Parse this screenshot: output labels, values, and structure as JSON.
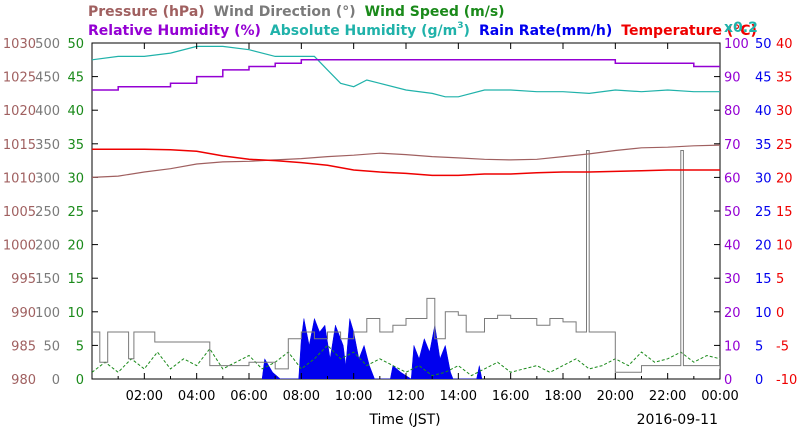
{
  "chart_data": {
    "type": "line",
    "date_label": "2016-09-11",
    "xlabel": "Time (JST)",
    "x_range_hours": [
      0,
      24
    ],
    "x_ticks": [
      "02:00",
      "04:00",
      "06:00",
      "08:00",
      "10:00",
      "12:00",
      "14:00",
      "16:00",
      "18:00",
      "20:00",
      "22:00",
      "00:00"
    ],
    "legend_row1": [
      {
        "id": "pressure",
        "label": "Pressure (hPa)",
        "color": "#a06060"
      },
      {
        "id": "wind_dir",
        "label": "Wind Direction (°)",
        "color": "#7a7a7a"
      },
      {
        "id": "wind_speed",
        "label": "Wind Speed (m/s)",
        "color": "#1a8a1a"
      }
    ],
    "legend_row2": [
      {
        "id": "rh",
        "label": "Relative Humidity (%)",
        "color": "#9400d3"
      },
      {
        "id": "ah",
        "label": "Absolute Humidity (g/m",
        "sup": "3",
        "close": ")",
        "color": "#20b2aa"
      },
      {
        "id": "rain",
        "label": "Rain Rate(mm/h)",
        "color": "#0000ee"
      },
      {
        "id": "temp",
        "label": "Temperature (°C)",
        "color": "#ee0000"
      },
      {
        "id": "ah_scale",
        "label": "x0.2",
        "color": "#20b2aa"
      }
    ],
    "axes": {
      "pressure": {
        "range": [
          980,
          1030
        ],
        "ticks": [
          "1030",
          "1025",
          "1020",
          "1015",
          "1010",
          "1005",
          "1000",
          "995",
          "990",
          "985",
          "980"
        ],
        "color": "#a06060"
      },
      "wind_dir": {
        "range": [
          0,
          500
        ],
        "ticks": [
          "500",
          "450",
          "400",
          "350",
          "300",
          "250",
          "200",
          "150",
          "100",
          "50",
          "0"
        ],
        "color": "#7a7a7a"
      },
      "wind_speed": {
        "range": [
          0,
          50
        ],
        "ticks": [
          "50",
          "45",
          "40",
          "35",
          "30",
          "25",
          "20",
          "15",
          "10",
          "5",
          "0"
        ],
        "color": "#1a8a1a"
      },
      "rh": {
        "range": [
          0,
          100
        ],
        "ticks": [
          "100",
          "90",
          "80",
          "70",
          "60",
          "50",
          "40",
          "30",
          "20",
          "10",
          "0"
        ],
        "color": "#9400d3"
      },
      "rain": {
        "range": [
          0,
          50
        ],
        "ticks": [
          "50",
          "45",
          "40",
          "35",
          "30",
          "25",
          "20",
          "15",
          "10",
          "5",
          "0"
        ],
        "color": "#0000ee"
      },
      "temp": {
        "range": [
          -10,
          40
        ],
        "ticks": [
          "40",
          "35",
          "30",
          "25",
          "20",
          "15",
          "10",
          "5",
          "0",
          "-5",
          "-10"
        ],
        "color": "#ee0000"
      }
    },
    "series": {
      "pressure": [
        [
          0,
          1010
        ],
        [
          1,
          1010.2
        ],
        [
          2,
          1010.8
        ],
        [
          3,
          1011.3
        ],
        [
          4,
          1012
        ],
        [
          5,
          1012.3
        ],
        [
          6,
          1012.4
        ],
        [
          7,
          1012.6
        ],
        [
          8,
          1012.8
        ],
        [
          9,
          1013.1
        ],
        [
          10,
          1013.3
        ],
        [
          11,
          1013.6
        ],
        [
          12,
          1013.4
        ],
        [
          13,
          1013.1
        ],
        [
          14,
          1012.9
        ],
        [
          15,
          1012.7
        ],
        [
          16,
          1012.6
        ],
        [
          17,
          1012.7
        ],
        [
          18,
          1013.1
        ],
        [
          19,
          1013.5
        ],
        [
          20,
          1014
        ],
        [
          21,
          1014.4
        ],
        [
          22,
          1014.5
        ],
        [
          23,
          1014.7
        ],
        [
          24,
          1014.8
        ]
      ],
      "temperature": [
        [
          0,
          24.2
        ],
        [
          1,
          24.2
        ],
        [
          2,
          24.2
        ],
        [
          3,
          24.1
        ],
        [
          4,
          23.9
        ],
        [
          5,
          23.2
        ],
        [
          6,
          22.7
        ],
        [
          7,
          22.5
        ],
        [
          8,
          22.2
        ],
        [
          9,
          21.8
        ],
        [
          10,
          21.1
        ],
        [
          11,
          20.8
        ],
        [
          12,
          20.6
        ],
        [
          13,
          20.3
        ],
        [
          14,
          20.3
        ],
        [
          15,
          20.5
        ],
        [
          16,
          20.5
        ],
        [
          17,
          20.7
        ],
        [
          18,
          20.8
        ],
        [
          19,
          20.8
        ],
        [
          20,
          20.9
        ],
        [
          21,
          21
        ],
        [
          22,
          21.1
        ],
        [
          23,
          21.1
        ],
        [
          24,
          21.1
        ]
      ],
      "relative_humidity": [
        [
          0,
          86
        ],
        [
          1,
          87
        ],
        [
          2,
          87
        ],
        [
          3,
          88
        ],
        [
          4,
          90
        ],
        [
          5,
          92
        ],
        [
          6,
          93
        ],
        [
          7,
          94
        ],
        [
          8,
          95
        ],
        [
          9,
          95
        ],
        [
          10,
          95
        ],
        [
          11,
          95
        ],
        [
          12,
          95
        ],
        [
          13,
          95
        ],
        [
          14,
          95
        ],
        [
          15,
          95
        ],
        [
          16,
          95
        ],
        [
          17,
          95
        ],
        [
          18,
          95
        ],
        [
          19,
          95
        ],
        [
          20,
          94
        ],
        [
          21,
          94
        ],
        [
          22,
          94
        ],
        [
          23,
          93
        ],
        [
          24,
          93
        ]
      ],
      "absolute_humidity": [
        [
          0,
          95
        ],
        [
          1,
          96
        ],
        [
          2,
          96
        ],
        [
          3,
          97
        ],
        [
          4,
          99
        ],
        [
          5,
          99
        ],
        [
          6,
          98
        ],
        [
          7,
          96
        ],
        [
          8,
          96
        ],
        [
          8.5,
          96
        ],
        [
          9,
          92
        ],
        [
          9.5,
          88
        ],
        [
          10,
          87
        ],
        [
          10.5,
          89
        ],
        [
          11,
          88
        ],
        [
          12,
          86
        ],
        [
          13,
          85
        ],
        [
          13.5,
          84
        ],
        [
          14,
          84
        ],
        [
          15,
          86
        ],
        [
          16,
          86
        ],
        [
          17,
          85.5
        ],
        [
          18,
          85.5
        ],
        [
          19,
          85
        ],
        [
          20,
          86
        ],
        [
          21,
          85.5
        ],
        [
          22,
          86
        ],
        [
          23,
          85.5
        ],
        [
          24,
          85.5
        ]
      ],
      "wind_direction": [
        [
          0,
          70
        ],
        [
          0.3,
          25
        ],
        [
          0.6,
          70
        ],
        [
          1.2,
          70
        ],
        [
          1.4,
          30
        ],
        [
          1.6,
          70
        ],
        [
          2.2,
          70
        ],
        [
          2.4,
          55
        ],
        [
          3.5,
          55
        ],
        [
          4.5,
          20
        ],
        [
          5,
          20
        ],
        [
          6,
          25
        ],
        [
          7,
          15
        ],
        [
          7.5,
          60
        ],
        [
          8,
          70
        ],
        [
          8.5,
          60
        ],
        [
          9,
          70
        ],
        [
          9.5,
          60
        ],
        [
          10,
          70
        ],
        [
          10.5,
          90
        ],
        [
          11,
          70
        ],
        [
          11.5,
          80
        ],
        [
          12,
          90
        ],
        [
          12.6,
          90
        ],
        [
          12.8,
          120
        ],
        [
          13.1,
          60
        ],
        [
          13.5,
          100
        ],
        [
          14,
          95
        ],
        [
          14.3,
          70
        ],
        [
          15,
          90
        ],
        [
          15.5,
          95
        ],
        [
          16,
          90
        ],
        [
          16.5,
          90
        ],
        [
          17,
          80
        ],
        [
          17.5,
          90
        ],
        [
          18,
          85
        ],
        [
          18.5,
          70
        ],
        [
          18.8,
          70
        ],
        [
          18.9,
          340
        ],
        [
          19,
          70
        ],
        [
          19.5,
          70
        ],
        [
          20,
          10
        ],
        [
          21,
          20
        ],
        [
          22,
          20
        ],
        [
          22.4,
          20
        ],
        [
          22.5,
          340
        ],
        [
          22.6,
          20
        ],
        [
          23,
          20
        ],
        [
          24,
          15
        ]
      ],
      "wind_speed": [
        [
          0,
          1
        ],
        [
          0.5,
          2.5
        ],
        [
          1,
          1
        ],
        [
          1.5,
          3
        ],
        [
          2,
          1.5
        ],
        [
          2.5,
          4
        ],
        [
          3,
          1.5
        ],
        [
          3.5,
          3
        ],
        [
          4,
          2
        ],
        [
          4.5,
          4.5
        ],
        [
          5,
          1.5
        ],
        [
          5.5,
          2.5
        ],
        [
          6,
          3.5
        ],
        [
          6.5,
          1.5
        ],
        [
          7,
          2.5
        ],
        [
          7.5,
          4
        ],
        [
          8,
          1.5
        ],
        [
          8.5,
          3
        ],
        [
          9,
          5
        ],
        [
          9.5,
          3
        ],
        [
          10,
          4
        ],
        [
          10.5,
          2
        ],
        [
          11,
          3
        ],
        [
          11.5,
          2
        ],
        [
          12,
          1
        ],
        [
          12.5,
          2
        ],
        [
          13,
          0.5
        ],
        [
          13.5,
          1
        ],
        [
          14,
          2
        ],
        [
          14.5,
          0.5
        ],
        [
          15,
          1.5
        ],
        [
          15.5,
          2.5
        ],
        [
          16,
          1
        ],
        [
          16.5,
          1.5
        ],
        [
          17,
          2
        ],
        [
          17.5,
          1
        ],
        [
          18,
          2
        ],
        [
          18.5,
          3
        ],
        [
          19,
          1.5
        ],
        [
          19.5,
          2
        ],
        [
          20,
          3
        ],
        [
          20.5,
          2
        ],
        [
          21,
          4
        ],
        [
          21.5,
          2.5
        ],
        [
          22,
          3
        ],
        [
          22.5,
          4
        ],
        [
          23,
          2.5
        ],
        [
          23.5,
          3.5
        ],
        [
          24,
          3
        ]
      ],
      "rain_rate": [
        [
          6.5,
          0
        ],
        [
          6.6,
          3
        ],
        [
          6.9,
          1
        ],
        [
          7.2,
          0
        ],
        [
          7.9,
          0
        ],
        [
          8.0,
          6
        ],
        [
          8.1,
          9
        ],
        [
          8.3,
          5
        ],
        [
          8.5,
          9
        ],
        [
          8.7,
          7
        ],
        [
          8.9,
          8
        ],
        [
          9.1,
          3
        ],
        [
          9.3,
          8
        ],
        [
          9.6,
          5
        ],
        [
          9.7,
          2
        ],
        [
          9.85,
          9
        ],
        [
          10,
          7
        ],
        [
          10.2,
          3
        ],
        [
          10.4,
          5
        ],
        [
          10.6,
          2
        ],
        [
          10.8,
          0
        ],
        [
          11.4,
          0
        ],
        [
          11.5,
          2
        ],
        [
          11.8,
          1
        ],
        [
          12.2,
          0
        ],
        [
          12.3,
          5
        ],
        [
          12.5,
          3
        ],
        [
          12.7,
          6
        ],
        [
          12.9,
          4
        ],
        [
          13.1,
          8
        ],
        [
          13.3,
          3
        ],
        [
          13.5,
          5
        ],
        [
          13.7,
          1
        ],
        [
          13.8,
          0
        ],
        [
          14.7,
          0
        ],
        [
          14.8,
          2
        ],
        [
          14.9,
          0
        ]
      ]
    }
  }
}
